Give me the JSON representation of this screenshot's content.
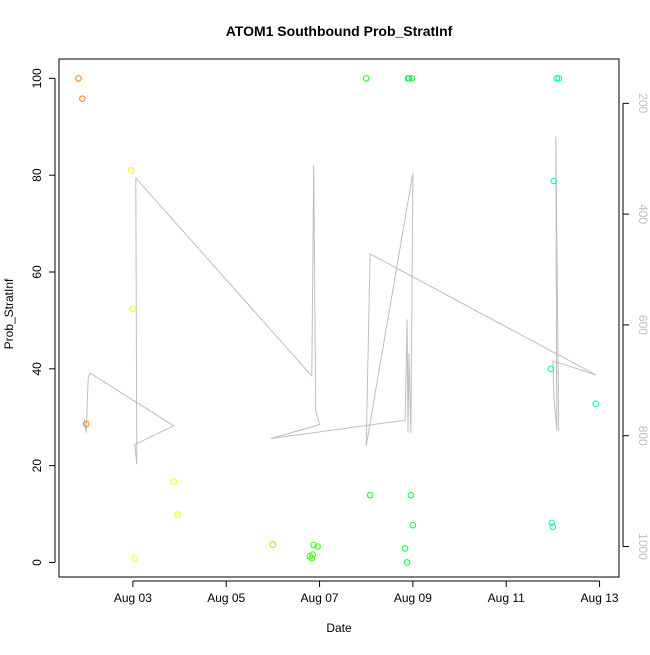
{
  "chart_data": {
    "type": "scatter",
    "title": "ATOM1 Southbound Prob_StratInf",
    "xlabel": "Date",
    "ylabel": "Prob_StratInf",
    "x_type": "date",
    "xlim": [
      "2012-08-01T10:00",
      "2012-08-13T10:00"
    ],
    "ylim": [
      -3,
      104
    ],
    "x_ticks": [
      {
        "date": "2012-08-03T00:00",
        "label": "Aug 03"
      },
      {
        "date": "2012-08-05T00:00",
        "label": "Aug 05"
      },
      {
        "date": "2012-08-07T00:00",
        "label": "Aug 07"
      },
      {
        "date": "2012-08-09T00:00",
        "label": "Aug 09"
      },
      {
        "date": "2012-08-11T00:00",
        "label": "Aug 11"
      },
      {
        "date": "2012-08-13T00:00",
        "label": "Aug 13"
      }
    ],
    "y_ticks": [
      {
        "value": 0,
        "label": "0"
      },
      {
        "value": 20,
        "label": "20"
      },
      {
        "value": 40,
        "label": "40"
      },
      {
        "value": 60,
        "label": "60"
      },
      {
        "value": 80,
        "label": "80"
      },
      {
        "value": 100,
        "label": "100"
      }
    ],
    "y2_axis": {
      "reversed": true,
      "lim": [
        1055,
        120
      ],
      "color": "#bebebe",
      "ticks": [
        {
          "value": 200,
          "label": "200"
        },
        {
          "value": 400,
          "label": "400"
        },
        {
          "value": 600,
          "label": "600"
        },
        {
          "value": 800,
          "label": "800"
        },
        {
          "value": 1000,
          "label": "1000"
        }
      ]
    },
    "grid": false,
    "line_color": "#bebebe",
    "points": [
      {
        "x": "2012-08-01T20:00",
        "y": 100,
        "color": "#ff8000"
      },
      {
        "x": "2012-08-01T22:00",
        "y": 95.8,
        "color": "#ff8000"
      },
      {
        "x": "2012-08-02T00:00",
        "y": 28.6,
        "color": "#ff8000"
      },
      {
        "x": "2012-08-02T23:00",
        "y": 81,
        "color": "#ffff00"
      },
      {
        "x": "2012-08-03T00:00",
        "y": 52.4,
        "color": "#ffff00"
      },
      {
        "x": "2012-08-03T01:00",
        "y": 0.8,
        "color": "#ffff00"
      },
      {
        "x": "2012-08-03T21:00",
        "y": 16.7,
        "color": "#ffff00"
      },
      {
        "x": "2012-08-03T23:00",
        "y": 9.9,
        "color": "#ffff00"
      },
      {
        "x": "2012-08-06T00:00",
        "y": 3.7,
        "color": "#80ff00"
      },
      {
        "x": "2012-08-06T19:00",
        "y": 1.3,
        "color": "#40ff00"
      },
      {
        "x": "2012-08-06T20:00",
        "y": 0.9,
        "color": "#40ff00"
      },
      {
        "x": "2012-08-06T20:30",
        "y": 1.6,
        "color": "#40ff00"
      },
      {
        "x": "2012-08-06T21:00",
        "y": 3.6,
        "color": "#40ff00"
      },
      {
        "x": "2012-08-06T23:00",
        "y": 3.3,
        "color": "#40ff00"
      },
      {
        "x": "2012-08-08T00:00",
        "y": 100,
        "color": "#00ff20"
      },
      {
        "x": "2012-08-08T02:00",
        "y": 13.9,
        "color": "#00ff20"
      },
      {
        "x": "2012-08-08T20:00",
        "y": 2.9,
        "color": "#00ff40"
      },
      {
        "x": "2012-08-08T21:00",
        "y": 0,
        "color": "#00ff40"
      },
      {
        "x": "2012-08-08T21:30",
        "y": 100,
        "color": "#00ff40"
      },
      {
        "x": "2012-08-08T22:00",
        "y": 100,
        "color": "#00ff40"
      },
      {
        "x": "2012-08-08T23:00",
        "y": 13.9,
        "color": "#00ff40"
      },
      {
        "x": "2012-08-08T23:30",
        "y": 100,
        "color": "#00ff40"
      },
      {
        "x": "2012-08-09T00:00",
        "y": 7.7,
        "color": "#00ff40"
      },
      {
        "x": "2012-08-11T23:00",
        "y": 40,
        "color": "#00ffa0"
      },
      {
        "x": "2012-08-11T23:30",
        "y": 8.2,
        "color": "#00ffa0"
      },
      {
        "x": "2012-08-12T00:00",
        "y": 7.4,
        "color": "#00ffa0"
      },
      {
        "x": "2012-08-12T00:30",
        "y": 78.8,
        "color": "#00ffa0"
      },
      {
        "x": "2012-08-12T02:00",
        "y": 100,
        "color": "#00ffa0"
      },
      {
        "x": "2012-08-12T03:00",
        "y": 100,
        "color": "#00ffa0"
      },
      {
        "x": "2012-08-12T22:00",
        "y": 32.8,
        "color": "#00ffa0"
      }
    ],
    "line": [
      {
        "x": "2012-08-01T23:00",
        "y2": 770
      },
      {
        "x": "2012-08-02T00:00",
        "y2": 795
      },
      {
        "x": "2012-08-02T01:00",
        "y2": 695
      },
      {
        "x": "2012-08-02T02:00",
        "y2": 687
      },
      {
        "x": "2012-08-03T21:00",
        "y2": 782
      },
      {
        "x": "2012-08-03T01:00",
        "y2": 816
      },
      {
        "x": "2012-08-03T02:00",
        "y2": 852
      },
      {
        "x": "2012-08-03T01:30",
        "y2": 335
      },
      {
        "x": "2012-08-06T20:00",
        "y2": 692
      },
      {
        "x": "2012-08-06T21:00",
        "y2": 312
      },
      {
        "x": "2012-08-06T22:00",
        "y2": 755
      },
      {
        "x": "2012-08-07T00:00",
        "y2": 780
      },
      {
        "x": "2012-08-05T23:00",
        "y2": 805
      },
      {
        "x": "2012-08-08T20:00",
        "y2": 772
      },
      {
        "x": "2012-08-08T21:00",
        "y2": 590
      },
      {
        "x": "2012-08-08T21:30",
        "y2": 794
      },
      {
        "x": "2012-08-08T22:00",
        "y2": 651
      },
      {
        "x": "2012-08-08T23:00",
        "y2": 795
      },
      {
        "x": "2012-08-09T00:00",
        "y2": 326
      },
      {
        "x": "2012-08-08T00:00",
        "y2": 818
      },
      {
        "x": "2012-08-08T02:00",
        "y2": 472
      },
      {
        "x": "2012-08-12T22:00",
        "y2": 690
      },
      {
        "x": "2012-08-12T00:00",
        "y2": 665
      },
      {
        "x": "2012-08-12T00:30",
        "y2": 730
      },
      {
        "x": "2012-08-12T02:00",
        "y2": 790
      },
      {
        "x": "2012-08-12T01:30",
        "y2": 260
      },
      {
        "x": "2012-08-12T03:00",
        "y2": 792
      }
    ]
  }
}
